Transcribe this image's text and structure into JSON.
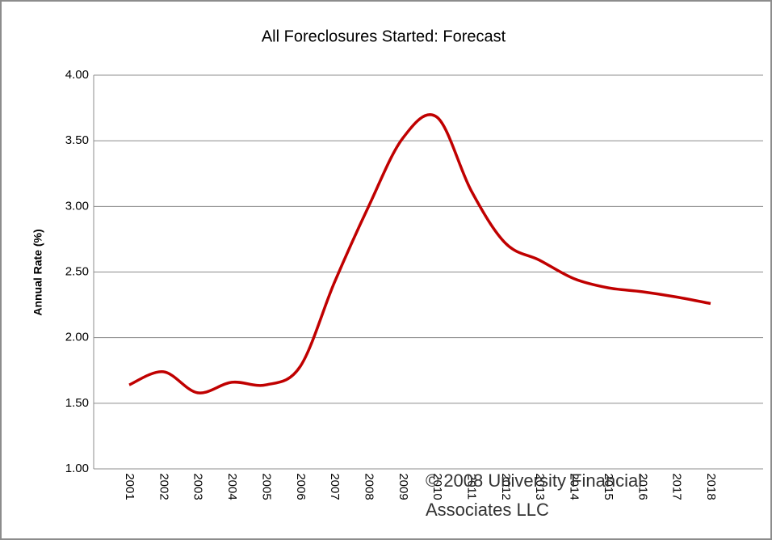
{
  "chart_data": {
    "type": "line",
    "title": "All Foreclosures Started:  Forecast",
    "y_label": "Annual Rate (%)",
    "categories": [
      "2001",
      "2002",
      "2003",
      "2004",
      "2005",
      "2006",
      "2007",
      "2008",
      "2009",
      "2010",
      "2011",
      "2012",
      "2013",
      "2014",
      "2015",
      "2016",
      "2017",
      "2018"
    ],
    "series": [
      {
        "name": "All Foreclosures Started",
        "color": "#c00000",
        "values": [
          1.64,
          1.74,
          1.58,
          1.66,
          1.64,
          1.78,
          2.42,
          3.0,
          3.52,
          3.68,
          3.12,
          2.72,
          2.59,
          2.45,
          2.38,
          2.35,
          2.31,
          2.26
        ]
      }
    ],
    "ylim": [
      1,
      4
    ],
    "yticks": [
      {
        "value": 1,
        "label": "1.00"
      },
      {
        "value": 1.5,
        "label": "1.50"
      },
      {
        "value": 2,
        "label": "2.00"
      },
      {
        "value": 2.5,
        "label": "2.50"
      },
      {
        "value": 3,
        "label": "3.00"
      },
      {
        "value": 3.5,
        "label": "3.50"
      },
      {
        "value": 4,
        "label": "4.00"
      }
    ],
    "grid": true,
    "smooth": true,
    "annotations": [
      "© 2008 University  Financial",
      "Associates LLC"
    ]
  }
}
